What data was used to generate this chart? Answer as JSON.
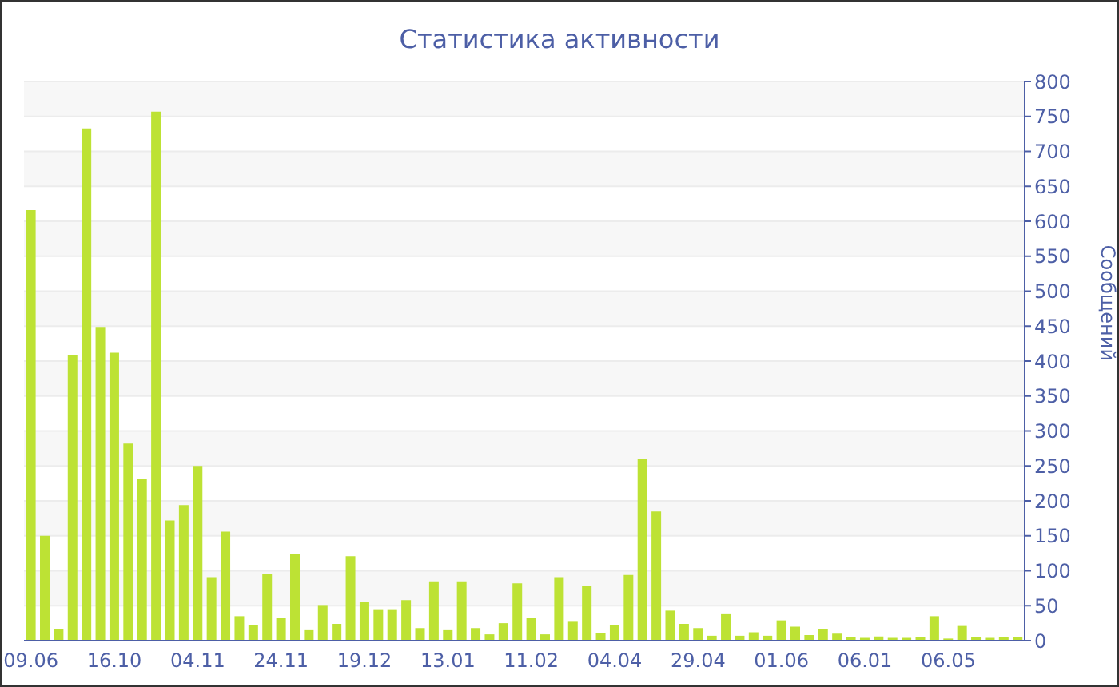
{
  "chart_data": {
    "type": "bar",
    "title": "Статистика активности",
    "ylabel": "Сообщений",
    "categories": [
      "09.06",
      null,
      null,
      null,
      null,
      null,
      "16.10",
      null,
      null,
      null,
      null,
      null,
      "04.11",
      null,
      null,
      null,
      null,
      null,
      "24.11",
      null,
      null,
      null,
      null,
      null,
      "19.12",
      null,
      null,
      null,
      null,
      null,
      "13.01",
      null,
      null,
      null,
      null,
      null,
      "11.02",
      null,
      null,
      null,
      null,
      null,
      "04.04",
      null,
      null,
      null,
      null,
      null,
      "29.04",
      null,
      null,
      null,
      null,
      null,
      "01.06",
      null,
      null,
      null,
      null,
      null,
      "06.01",
      null,
      null,
      null,
      null,
      null,
      "06.05",
      null,
      null,
      null,
      null,
      null
    ],
    "values": [
      616,
      150,
      16,
      409,
      733,
      449,
      412,
      282,
      231,
      757,
      172,
      194,
      250,
      91,
      156,
      35,
      22,
      96,
      32,
      124,
      15,
      51,
      24,
      121,
      56,
      45,
      45,
      58,
      18,
      85,
      15,
      85,
      18,
      9,
      25,
      82,
      33,
      9,
      91,
      27,
      79,
      11,
      22,
      94,
      260,
      185,
      43,
      24,
      18,
      7,
      39,
      7,
      12,
      7,
      29,
      20,
      8,
      16,
      10,
      5,
      4,
      6,
      4,
      4,
      5,
      35,
      3,
      21,
      5,
      4,
      5,
      5
    ],
    "color": "#bde234",
    "ylim": [
      0,
      800
    ],
    "yticks": [
      0,
      50,
      100,
      150,
      200,
      250,
      300,
      350,
      400,
      450,
      500,
      550,
      600,
      650,
      700,
      750,
      800
    ],
    "grid": "y"
  }
}
